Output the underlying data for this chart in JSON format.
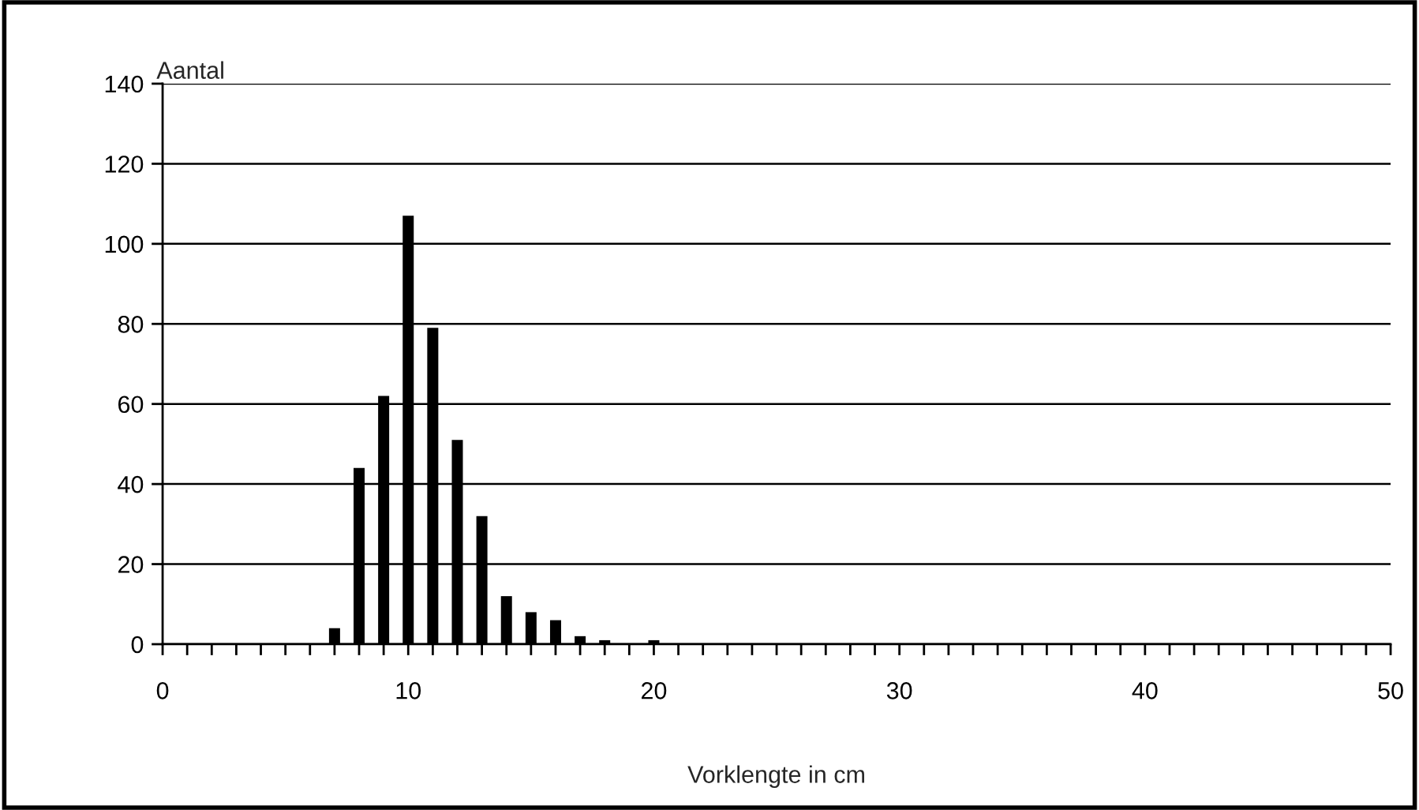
{
  "chart_data": {
    "type": "bar",
    "xlabel": "Vorklengte in cm",
    "ylabel": "Aantal",
    "x": [
      7,
      8,
      9,
      10,
      11,
      12,
      13,
      14,
      15,
      16,
      17,
      18,
      20
    ],
    "values": [
      4,
      44,
      62,
      107,
      79,
      51,
      32,
      12,
      8,
      6,
      2,
      1,
      1
    ],
    "color": "#000000",
    "xlim": [
      0,
      50
    ],
    "xticks": [
      0,
      {
        "value": 1,
        "label": null
      },
      {
        "value": 2,
        "label": null
      },
      {
        "value": 3,
        "label": null
      },
      {
        "value": 4,
        "label": null
      },
      {
        "value": 5,
        "label": null
      },
      {
        "value": 6,
        "label": null
      },
      {
        "value": 7,
        "label": null
      },
      {
        "value": 8,
        "label": null
      },
      {
        "value": 9,
        "label": null
      },
      10,
      {
        "value": 11,
        "label": null
      },
      {
        "value": 12,
        "label": null
      },
      {
        "value": 13,
        "label": null
      },
      {
        "value": 14,
        "label": null
      },
      {
        "value": 15,
        "label": null
      },
      {
        "value": 16,
        "label": null
      },
      {
        "value": 17,
        "label": null
      },
      {
        "value": 18,
        "label": null
      },
      {
        "value": 19,
        "label": null
      },
      20,
      {
        "value": 21,
        "label": null
      },
      {
        "value": 22,
        "label": null
      },
      {
        "value": 23,
        "label": null
      },
      {
        "value": 24,
        "label": null
      },
      {
        "value": 25,
        "label": null
      },
      {
        "value": 26,
        "label": null
      },
      {
        "value": 27,
        "label": null
      },
      {
        "value": 28,
        "label": null
      },
      {
        "value": 29,
        "label": null
      },
      30,
      {
        "value": 31,
        "label": null
      },
      {
        "value": 32,
        "label": null
      },
      {
        "value": 33,
        "label": null
      },
      {
        "value": 34,
        "label": null
      },
      {
        "value": 35,
        "label": null
      },
      {
        "value": 36,
        "label": null
      },
      {
        "value": 37,
        "label": null
      },
      {
        "value": 38,
        "label": null
      },
      {
        "value": 39,
        "label": null
      },
      40,
      {
        "value": 41,
        "label": null
      },
      {
        "value": 42,
        "label": null
      },
      {
        "value": 43,
        "label": null
      },
      {
        "value": 44,
        "label": null
      },
      {
        "value": 45,
        "label": null
      },
      {
        "value": 46,
        "label": null
      },
      {
        "value": 47,
        "label": null
      },
      {
        "value": 48,
        "label": null
      },
      {
        "value": 49,
        "label": null
      },
      50
    ],
    "ylim": [
      0,
      140
    ],
    "yticks": [
      0,
      20,
      40,
      60,
      80,
      100,
      120,
      140
    ],
    "grid": "y",
    "legend": false
  }
}
